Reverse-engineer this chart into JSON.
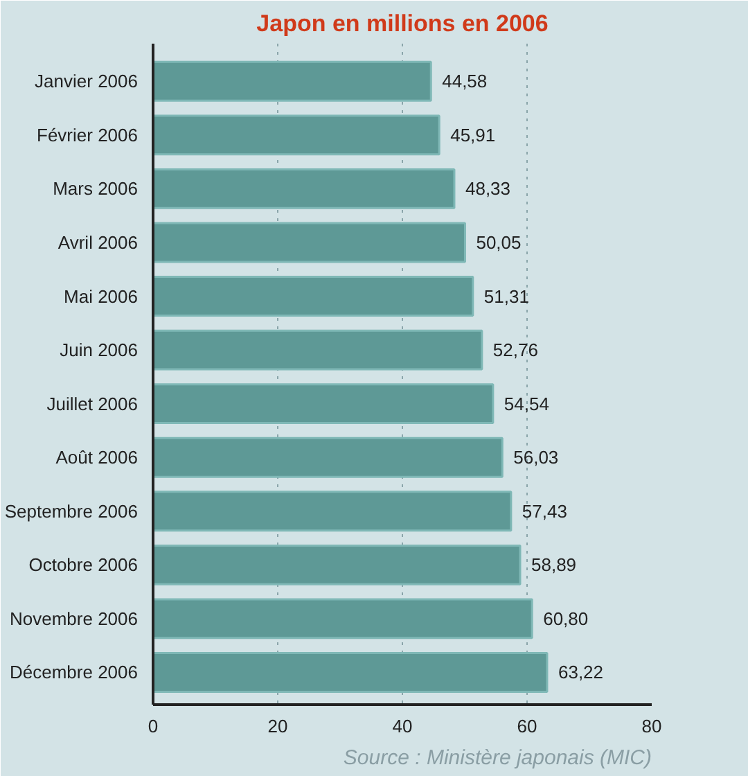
{
  "chart_data": {
    "type": "bar",
    "orientation": "horizontal",
    "title": "Japon en millions en 2006",
    "categories": [
      "Janvier 2006",
      "Février 2006",
      "Mars 2006",
      "Avril 2006",
      "Mai 2006",
      "Juin 2006",
      "Juillet 2006",
      "Août 2006",
      "Septembre 2006",
      "Octobre 2006",
      "Novembre 2006",
      "Décembre 2006"
    ],
    "values": [
      44.58,
      45.91,
      48.33,
      50.05,
      51.31,
      52.76,
      54.54,
      56.03,
      57.43,
      58.89,
      60.8,
      63.22
    ],
    "value_labels": [
      "44,58",
      "45,91",
      "48,33",
      "50,05",
      "51,31",
      "52,76",
      "54,54",
      "56,03",
      "57,43",
      "58,89",
      "60,80",
      "63,22"
    ],
    "color": "#5e9996",
    "xlim": [
      0,
      80
    ],
    "xticks": [
      0,
      20,
      40,
      60,
      80
    ],
    "grid": "x",
    "annotations": [
      "Source : Ministère japonais (MIC)"
    ]
  }
}
